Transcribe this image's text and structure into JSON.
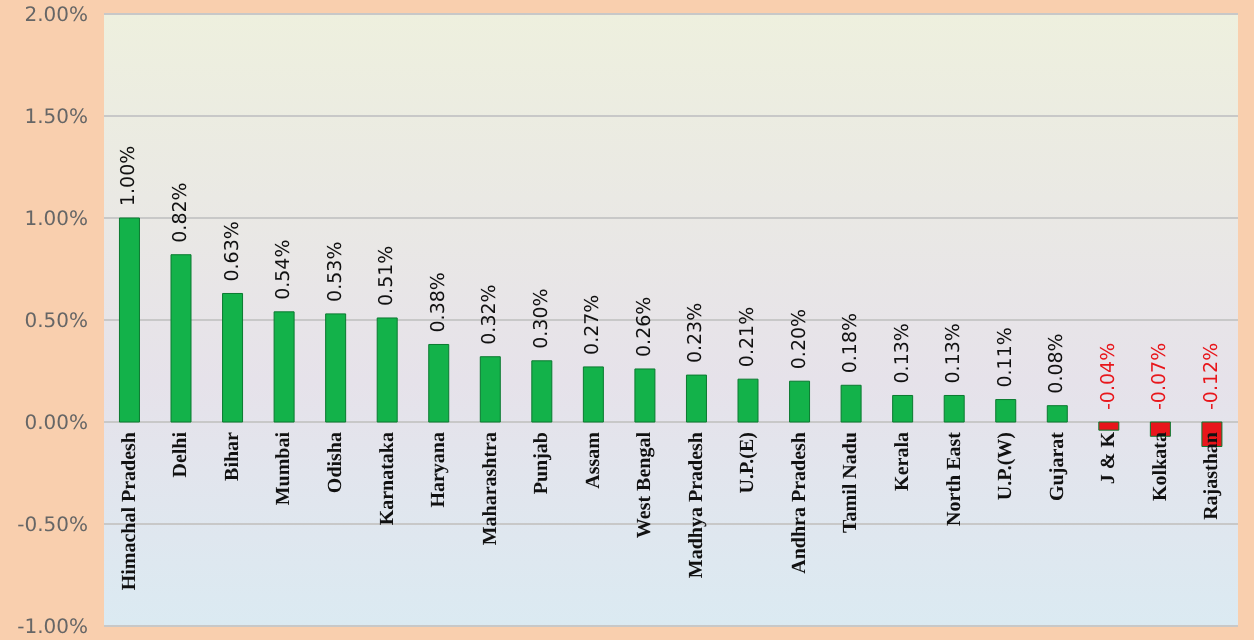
{
  "chart_data": {
    "type": "bar",
    "categories": [
      "Himachal Pradesh",
      "Delhi",
      "Bihar",
      "Mumbai",
      "Odisha",
      "Karnataka",
      "Haryana",
      "Maharashtra",
      "Punjab",
      "Assam",
      "West Bengal",
      "Madhya Pradesh",
      "U.P.(E)",
      "Andhra Pradesh",
      "Tamil Nadu",
      "Kerala",
      "North East",
      "U.P.(W)",
      "Gujarat",
      "J & K",
      "Kolkata",
      "Rajasthan"
    ],
    "values": [
      1.0,
      0.82,
      0.63,
      0.54,
      0.53,
      0.51,
      0.38,
      0.32,
      0.3,
      0.27,
      0.26,
      0.23,
      0.21,
      0.2,
      0.18,
      0.13,
      0.13,
      0.11,
      0.08,
      -0.04,
      -0.07,
      -0.12
    ],
    "value_labels": [
      "1.00%",
      "0.82%",
      "0.63%",
      "0.54%",
      "0.53%",
      "0.51%",
      "0.38%",
      "0.32%",
      "0.30%",
      "0.27%",
      "0.26%",
      "0.23%",
      "0.21%",
      "0.20%",
      "0.18%",
      "0.13%",
      "0.13%",
      "0.11%",
      "0.08%",
      "-0.04%",
      "-0.07%",
      "-0.12%"
    ],
    "colors": [
      "#13b24a",
      "#13b24a",
      "#13b24a",
      "#13b24a",
      "#13b24a",
      "#13b24a",
      "#13b24a",
      "#13b24a",
      "#13b24a",
      "#13b24a",
      "#13b24a",
      "#13b24a",
      "#13b24a",
      "#13b24a",
      "#13b24a",
      "#13b24a",
      "#13b24a",
      "#13b24a",
      "#13b24a",
      "#e8161b",
      "#e8161b",
      "#e8161b"
    ],
    "ylim": [
      -1,
      2
    ],
    "yticks": [
      {
        "value": -1,
        "label": "-1.00%"
      },
      {
        "value": -0.5,
        "label": "-0.50%"
      },
      {
        "value": 0,
        "label": "0.00%"
      },
      {
        "value": 0.5,
        "label": "0.50%"
      },
      {
        "value": 1,
        "label": "1.00%"
      },
      {
        "value": 1.5,
        "label": "1.50%"
      },
      {
        "value": 2,
        "label": "2.00%"
      }
    ],
    "grid": "y"
  }
}
